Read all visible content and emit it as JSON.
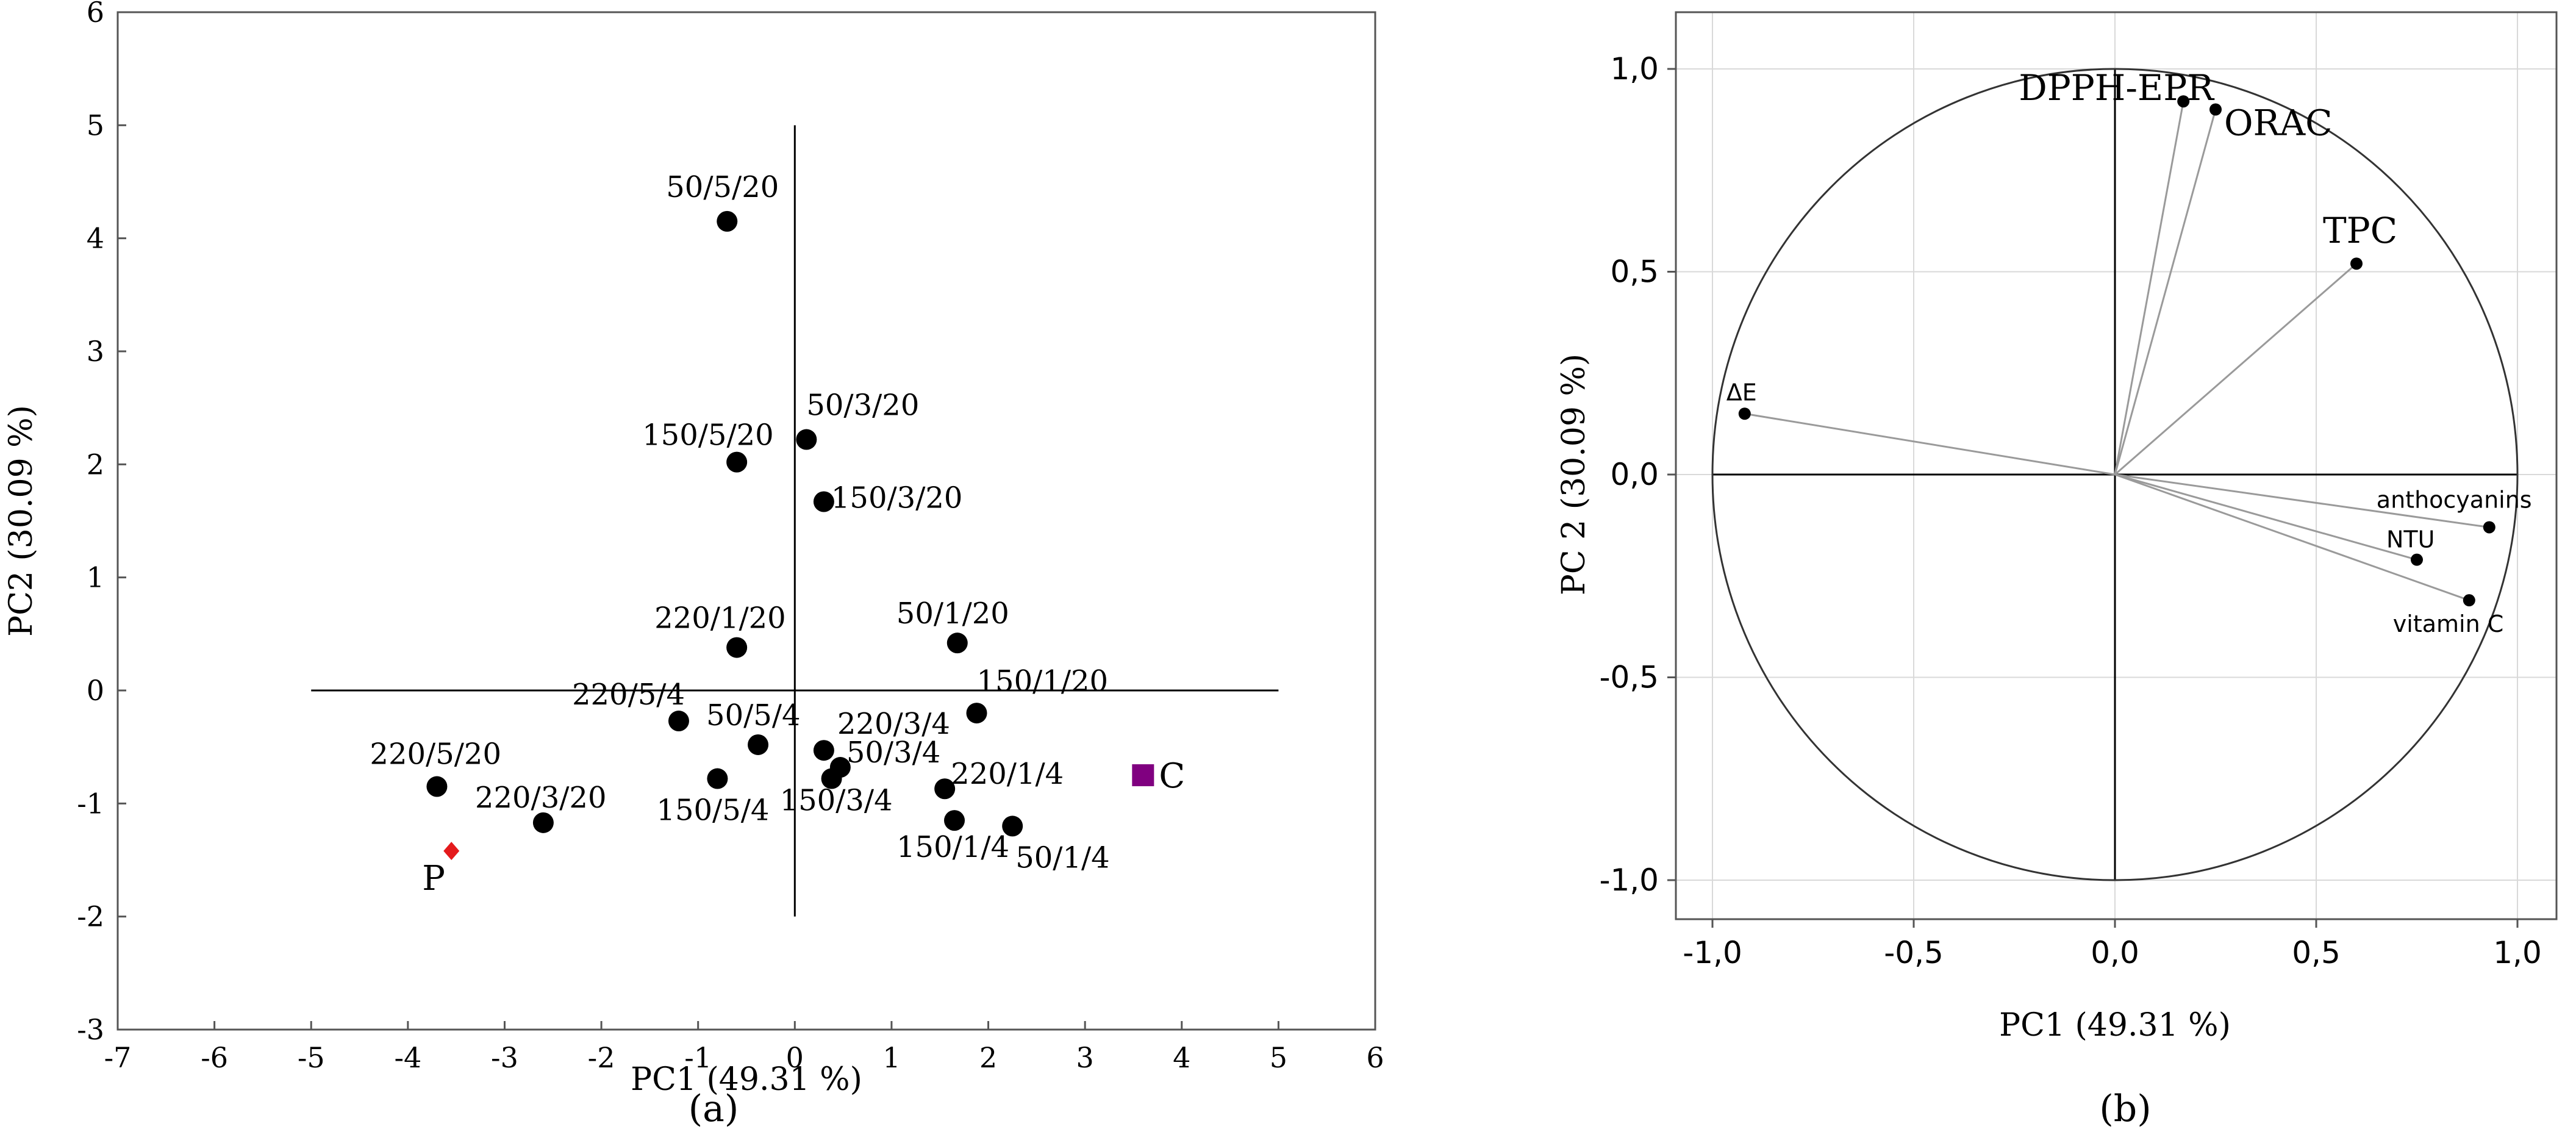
{
  "chart_data": [
    {
      "type": "scatter",
      "panel_label": "(a)",
      "xlabel": "PC1 (49.31 %)",
      "ylabel": "PC2 (30.09 %)",
      "xlim": [
        -7,
        6
      ],
      "ylim": [
        -3,
        6
      ],
      "xticks": [
        "-7",
        "-6",
        "-5",
        "-4",
        "-3",
        "-2",
        "-1",
        "0",
        "1",
        "2",
        "3",
        "4",
        "5",
        "6"
      ],
      "yticks": [
        "-3",
        "-2",
        "-1",
        "0",
        "1",
        "2",
        "3",
        "4",
        "5",
        "6"
      ],
      "grid": false,
      "points": [
        {
          "label": "50/5/20",
          "x": -0.7,
          "y": 4.15
        },
        {
          "label": "50/3/20",
          "x": 0.12,
          "y": 2.22
        },
        {
          "label": "150/5/20",
          "x": -0.6,
          "y": 2.02
        },
        {
          "label": "150/3/20",
          "x": 0.3,
          "y": 1.67
        },
        {
          "label": "220/1/20",
          "x": -0.6,
          "y": 0.38
        },
        {
          "label": "50/1/20",
          "x": 1.68,
          "y": 0.42
        },
        {
          "label": "150/1/20",
          "x": 1.88,
          "y": -0.2
        },
        {
          "label": "220/5/4",
          "x": -1.2,
          "y": -0.27
        },
        {
          "label": "50/5/4",
          "x": -0.38,
          "y": -0.48
        },
        {
          "label": "220/3/4",
          "x": 0.3,
          "y": -0.53
        },
        {
          "label": "50/3/4",
          "x": 0.47,
          "y": -0.68
        },
        {
          "label": "150/3/4",
          "x": 0.38,
          "y": -0.78
        },
        {
          "label": "150/5/4",
          "x": -0.8,
          "y": -0.78
        },
        {
          "label": "220/1/4",
          "x": 1.55,
          "y": -0.87
        },
        {
          "label": "150/1/4",
          "x": 1.65,
          "y": -1.15
        },
        {
          "label": "50/1/4",
          "x": 2.25,
          "y": -1.2
        },
        {
          "label": "220/5/20",
          "x": -3.7,
          "y": -0.85
        },
        {
          "label": "220/3/20",
          "x": -2.6,
          "y": -1.17
        }
      ],
      "special_points": [
        {
          "label": "P",
          "x": -3.55,
          "y": -1.42,
          "marker": "diamond",
          "color": "#e41a1c"
        },
        {
          "label": "C",
          "x": 3.6,
          "y": -0.75,
          "marker": "square",
          "color": "#800080"
        }
      ],
      "reference_lines": {
        "horizontal": {
          "y": 0,
          "x_from": -5,
          "x_to": 5
        },
        "vertical": {
          "x": 0,
          "y_from": -2,
          "y_to": 5
        }
      }
    },
    {
      "type": "loading_plot",
      "panel_label": "(b)",
      "xlabel": "PC1 (49.31 %)",
      "ylabel": "PC 2 (30.09 %)",
      "xlim": [
        -1.1,
        1.1
      ],
      "ylim": [
        -1.1,
        1.1
      ],
      "xticks": [
        "-1,0",
        "-0,5",
        "0,0",
        "0,5",
        "1,0"
      ],
      "yticks": [
        "1,0",
        "0,5",
        "0,0",
        "-0,5",
        "-1,0"
      ],
      "grid": true,
      "unit_circle": true,
      "vectors": [
        {
          "label": "DPPH-EPR",
          "x": 0.17,
          "y": 0.92
        },
        {
          "label": "ORAC",
          "x": 0.25,
          "y": 0.9
        },
        {
          "label": "TPC",
          "x": 0.6,
          "y": 0.52
        },
        {
          "label": "ΔE",
          "x": -0.92,
          "y": 0.15
        },
        {
          "label": "anthocyanins",
          "x": 0.93,
          "y": -0.13
        },
        {
          "label": "NTU",
          "x": 0.75,
          "y": -0.21
        },
        {
          "label": "vitamin C",
          "x": 0.88,
          "y": -0.31
        }
      ]
    }
  ],
  "colors": {
    "point": "#000000",
    "vector_line": "#9a9a9a",
    "grid": "#d9d9d9"
  }
}
